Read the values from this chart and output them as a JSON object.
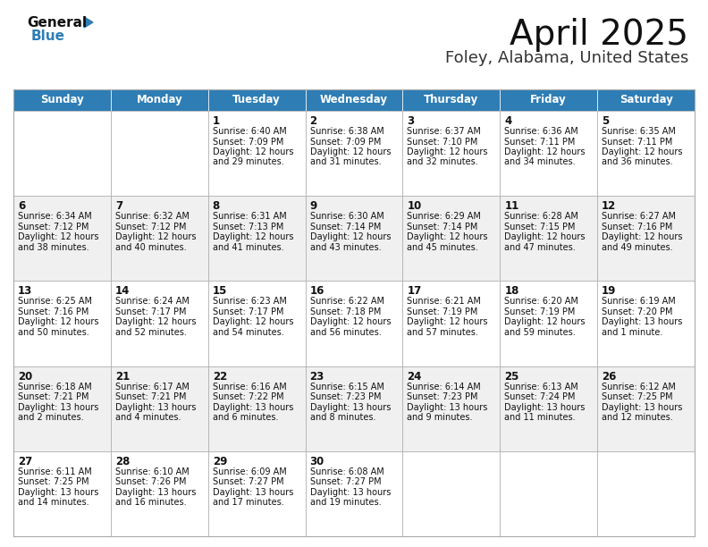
{
  "title": "April 2025",
  "subtitle": "Foley, Alabama, United States",
  "header_color": "#2E7DB5",
  "header_text_color": "#FFFFFF",
  "bg_color": "#FFFFFF",
  "cell_bg_light": "#F0F0F0",
  "cell_bg_white": "#FFFFFF",
  "border_color": "#AAAAAA",
  "text_color": "#111111",
  "day_names": [
    "Sunday",
    "Monday",
    "Tuesday",
    "Wednesday",
    "Thursday",
    "Friday",
    "Saturday"
  ],
  "days": [
    {
      "day": 1,
      "col": 2,
      "row": 0,
      "sunrise": "6:40 AM",
      "sunset": "7:09 PM",
      "daylight": "12 hours and 29 minutes."
    },
    {
      "day": 2,
      "col": 3,
      "row": 0,
      "sunrise": "6:38 AM",
      "sunset": "7:09 PM",
      "daylight": "12 hours and 31 minutes."
    },
    {
      "day": 3,
      "col": 4,
      "row": 0,
      "sunrise": "6:37 AM",
      "sunset": "7:10 PM",
      "daylight": "12 hours and 32 minutes."
    },
    {
      "day": 4,
      "col": 5,
      "row": 0,
      "sunrise": "6:36 AM",
      "sunset": "7:11 PM",
      "daylight": "12 hours and 34 minutes."
    },
    {
      "day": 5,
      "col": 6,
      "row": 0,
      "sunrise": "6:35 AM",
      "sunset": "7:11 PM",
      "daylight": "12 hours and 36 minutes."
    },
    {
      "day": 6,
      "col": 0,
      "row": 1,
      "sunrise": "6:34 AM",
      "sunset": "7:12 PM",
      "daylight": "12 hours and 38 minutes."
    },
    {
      "day": 7,
      "col": 1,
      "row": 1,
      "sunrise": "6:32 AM",
      "sunset": "7:12 PM",
      "daylight": "12 hours and 40 minutes."
    },
    {
      "day": 8,
      "col": 2,
      "row": 1,
      "sunrise": "6:31 AM",
      "sunset": "7:13 PM",
      "daylight": "12 hours and 41 minutes."
    },
    {
      "day": 9,
      "col": 3,
      "row": 1,
      "sunrise": "6:30 AM",
      "sunset": "7:14 PM",
      "daylight": "12 hours and 43 minutes."
    },
    {
      "day": 10,
      "col": 4,
      "row": 1,
      "sunrise": "6:29 AM",
      "sunset": "7:14 PM",
      "daylight": "12 hours and 45 minutes."
    },
    {
      "day": 11,
      "col": 5,
      "row": 1,
      "sunrise": "6:28 AM",
      "sunset": "7:15 PM",
      "daylight": "12 hours and 47 minutes."
    },
    {
      "day": 12,
      "col": 6,
      "row": 1,
      "sunrise": "6:27 AM",
      "sunset": "7:16 PM",
      "daylight": "12 hours and 49 minutes."
    },
    {
      "day": 13,
      "col": 0,
      "row": 2,
      "sunrise": "6:25 AM",
      "sunset": "7:16 PM",
      "daylight": "12 hours and 50 minutes."
    },
    {
      "day": 14,
      "col": 1,
      "row": 2,
      "sunrise": "6:24 AM",
      "sunset": "7:17 PM",
      "daylight": "12 hours and 52 minutes."
    },
    {
      "day": 15,
      "col": 2,
      "row": 2,
      "sunrise": "6:23 AM",
      "sunset": "7:17 PM",
      "daylight": "12 hours and 54 minutes."
    },
    {
      "day": 16,
      "col": 3,
      "row": 2,
      "sunrise": "6:22 AM",
      "sunset": "7:18 PM",
      "daylight": "12 hours and 56 minutes."
    },
    {
      "day": 17,
      "col": 4,
      "row": 2,
      "sunrise": "6:21 AM",
      "sunset": "7:19 PM",
      "daylight": "12 hours and 57 minutes."
    },
    {
      "day": 18,
      "col": 5,
      "row": 2,
      "sunrise": "6:20 AM",
      "sunset": "7:19 PM",
      "daylight": "12 hours and 59 minutes."
    },
    {
      "day": 19,
      "col": 6,
      "row": 2,
      "sunrise": "6:19 AM",
      "sunset": "7:20 PM",
      "daylight": "13 hours and 1 minute."
    },
    {
      "day": 20,
      "col": 0,
      "row": 3,
      "sunrise": "6:18 AM",
      "sunset": "7:21 PM",
      "daylight": "13 hours and 2 minutes."
    },
    {
      "day": 21,
      "col": 1,
      "row": 3,
      "sunrise": "6:17 AM",
      "sunset": "7:21 PM",
      "daylight": "13 hours and 4 minutes."
    },
    {
      "day": 22,
      "col": 2,
      "row": 3,
      "sunrise": "6:16 AM",
      "sunset": "7:22 PM",
      "daylight": "13 hours and 6 minutes."
    },
    {
      "day": 23,
      "col": 3,
      "row": 3,
      "sunrise": "6:15 AM",
      "sunset": "7:23 PM",
      "daylight": "13 hours and 8 minutes."
    },
    {
      "day": 24,
      "col": 4,
      "row": 3,
      "sunrise": "6:14 AM",
      "sunset": "7:23 PM",
      "daylight": "13 hours and 9 minutes."
    },
    {
      "day": 25,
      "col": 5,
      "row": 3,
      "sunrise": "6:13 AM",
      "sunset": "7:24 PM",
      "daylight": "13 hours and 11 minutes."
    },
    {
      "day": 26,
      "col": 6,
      "row": 3,
      "sunrise": "6:12 AM",
      "sunset": "7:25 PM",
      "daylight": "13 hours and 12 minutes."
    },
    {
      "day": 27,
      "col": 0,
      "row": 4,
      "sunrise": "6:11 AM",
      "sunset": "7:25 PM",
      "daylight": "13 hours and 14 minutes."
    },
    {
      "day": 28,
      "col": 1,
      "row": 4,
      "sunrise": "6:10 AM",
      "sunset": "7:26 PM",
      "daylight": "13 hours and 16 minutes."
    },
    {
      "day": 29,
      "col": 2,
      "row": 4,
      "sunrise": "6:09 AM",
      "sunset": "7:27 PM",
      "daylight": "13 hours and 17 minutes."
    },
    {
      "day": 30,
      "col": 3,
      "row": 4,
      "sunrise": "6:08 AM",
      "sunset": "7:27 PM",
      "daylight": "13 hours and 19 minutes."
    }
  ]
}
